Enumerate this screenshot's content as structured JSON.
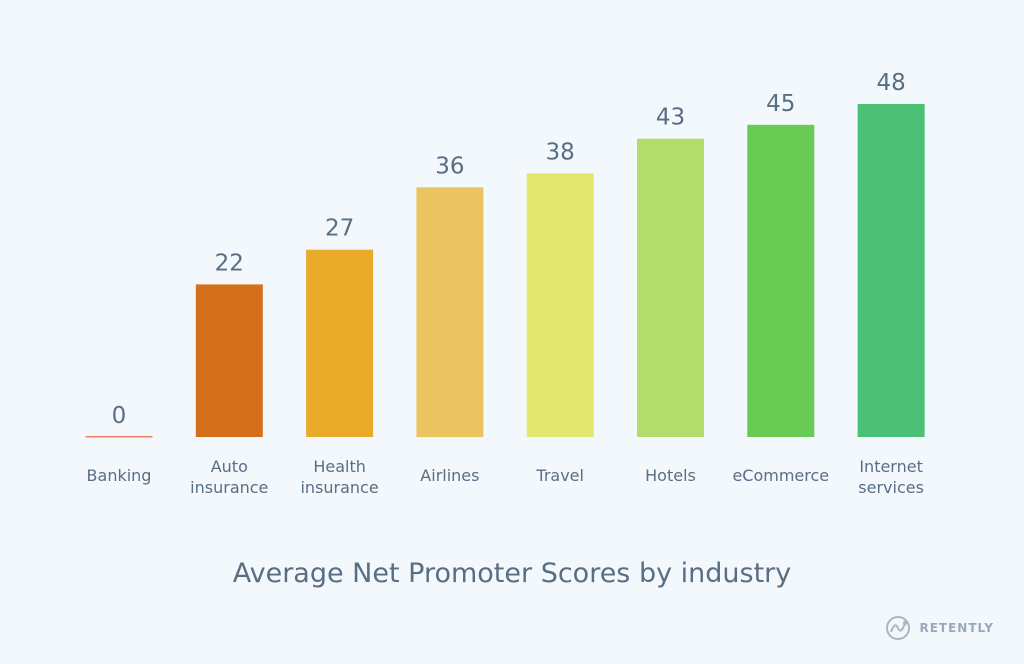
{
  "chart_data": {
    "type": "bar",
    "title": "Average Net Promoter Scores by industry",
    "categories": [
      [
        "Banking"
      ],
      [
        "Auto",
        "insurance"
      ],
      [
        "Health",
        "insurance"
      ],
      [
        "Airlines"
      ],
      [
        "Travel"
      ],
      [
        "Hotels"
      ],
      [
        "eCommerce"
      ],
      [
        "Internet",
        "services"
      ]
    ],
    "values": [
      0,
      22,
      27,
      36,
      38,
      43,
      45,
      48
    ],
    "colors": [
      "#e8806a",
      "#d4701c",
      "#e9ab2a",
      "#ebc462",
      "#e2e86f",
      "#b4dc6a",
      "#68cb54",
      "#4cc074"
    ],
    "ylim": [
      0,
      48
    ],
    "grid": false,
    "legend": "none"
  },
  "brand": {
    "name": "RETENTLY",
    "logo_icon": "retently-logo-icon"
  }
}
